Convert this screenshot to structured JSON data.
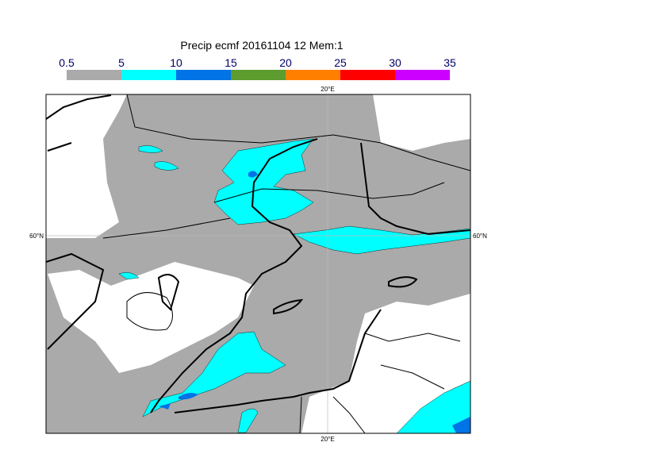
{
  "title": "Precip ecmf 20161104 12 Mem:1",
  "colorbar": {
    "levels": [
      0.5,
      5,
      10,
      15,
      20,
      25,
      30,
      35
    ],
    "colors": [
      "#aaaaaa",
      "#00ffff",
      "#0073e6",
      "#5d9c2e",
      "#ff8000",
      "#ff0000",
      "#cc00ff"
    ]
  },
  "map": {
    "top_label": "20°E",
    "bottom_label": "20°E",
    "left_label": "60°N",
    "right_label": "60°N"
  }
}
